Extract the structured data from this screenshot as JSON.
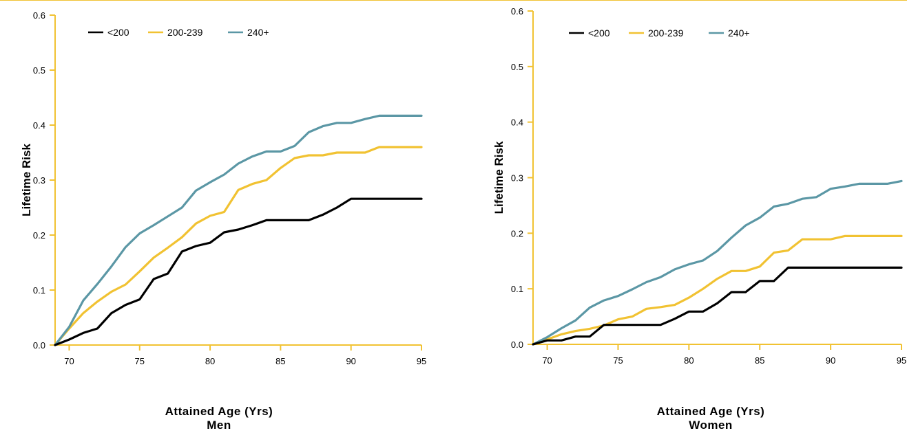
{
  "colors": {
    "axis": "#f1c232",
    "s_lt200": "#000000",
    "s_200_239": "#f1c232",
    "s_240": "#5b97a5"
  },
  "chart_data": [
    {
      "type": "line",
      "panel": "Men",
      "xlabel": "Attained Age (Yrs)",
      "ylabel": "Lifetime Risk",
      "xlim": [
        69,
        95
      ],
      "ylim": [
        0,
        0.6
      ],
      "xticks": [
        70,
        75,
        80,
        85,
        90,
        95
      ],
      "yticks": [
        0.0,
        0.1,
        0.2,
        0.3,
        0.4,
        0.5,
        0.6
      ],
      "ytick_labels": [
        "0.0",
        "0.1",
        "0.2",
        "0.3",
        "0.4",
        "0.5",
        "0.6"
      ],
      "legend": "top-left",
      "series": [
        {
          "name": "<200",
          "color": "#000000",
          "x": [
            69,
            70,
            71,
            72,
            73,
            74,
            75,
            76,
            77,
            78,
            79,
            80,
            81,
            82,
            83,
            84,
            85,
            86,
            87,
            88,
            89,
            90,
            91,
            92,
            93,
            94,
            95
          ],
          "y": [
            0.0,
            0.01,
            0.022,
            0.03,
            0.058,
            0.073,
            0.083,
            0.12,
            0.13,
            0.17,
            0.18,
            0.186,
            0.205,
            0.21,
            0.218,
            0.227,
            0.227,
            0.227,
            0.227,
            0.237,
            0.25,
            0.266,
            0.266,
            0.266,
            0.266,
            0.266,
            0.266
          ]
        },
        {
          "name": "200-239",
          "color": "#f1c232",
          "x": [
            69,
            70,
            71,
            72,
            73,
            74,
            75,
            76,
            77,
            78,
            79,
            80,
            81,
            82,
            83,
            84,
            85,
            86,
            87,
            88,
            89,
            90,
            91,
            92,
            93,
            94,
            95
          ],
          "y": [
            0.0,
            0.03,
            0.058,
            0.079,
            0.097,
            0.11,
            0.134,
            0.159,
            0.177,
            0.196,
            0.221,
            0.235,
            0.242,
            0.282,
            0.293,
            0.3,
            0.322,
            0.34,
            0.345,
            0.345,
            0.35,
            0.35,
            0.35,
            0.36,
            0.36,
            0.36,
            0.36
          ]
        },
        {
          "name": "240+",
          "color": "#5b97a5",
          "x": [
            69,
            70,
            71,
            72,
            73,
            74,
            75,
            76,
            77,
            78,
            79,
            80,
            81,
            82,
            83,
            84,
            85,
            86,
            87,
            88,
            89,
            90,
            91,
            92,
            93,
            94,
            95
          ],
          "y": [
            0.0,
            0.033,
            0.081,
            0.111,
            0.143,
            0.178,
            0.203,
            0.218,
            0.234,
            0.25,
            0.281,
            0.296,
            0.31,
            0.33,
            0.343,
            0.352,
            0.352,
            0.362,
            0.387,
            0.398,
            0.404,
            0.404,
            0.411,
            0.417,
            0.417,
            0.417,
            0.417
          ]
        }
      ]
    },
    {
      "type": "line",
      "panel": "Women",
      "xlabel": "Attained Age (Yrs)",
      "ylabel": "Lifetime Risk",
      "xlim": [
        69,
        95
      ],
      "ylim": [
        0,
        0.6
      ],
      "xticks": [
        70,
        75,
        80,
        85,
        90,
        95
      ],
      "yticks": [
        0.0,
        0.1,
        0.2,
        0.3,
        0.4,
        0.5,
        0.6
      ],
      "ytick_labels": [
        "0.0",
        "0.1",
        "0.2",
        "0.3",
        "0.4",
        "0.5",
        "0.6"
      ],
      "legend": "top-left",
      "series": [
        {
          "name": "<200",
          "color": "#000000",
          "x": [
            69,
            70,
            71,
            72,
            73,
            74,
            75,
            76,
            77,
            78,
            79,
            80,
            81,
            82,
            83,
            84,
            85,
            86,
            87,
            88,
            89,
            90,
            91,
            92,
            93,
            94,
            95
          ],
          "y": [
            0.0,
            0.007,
            0.007,
            0.014,
            0.014,
            0.035,
            0.035,
            0.035,
            0.035,
            0.035,
            0.046,
            0.059,
            0.059,
            0.074,
            0.094,
            0.094,
            0.114,
            0.114,
            0.138,
            0.138,
            0.138,
            0.138,
            0.138,
            0.138,
            0.138,
            0.138,
            0.138
          ]
        },
        {
          "name": "200-239",
          "color": "#f1c232",
          "x": [
            69,
            70,
            71,
            72,
            73,
            74,
            75,
            76,
            77,
            78,
            79,
            80,
            81,
            82,
            83,
            84,
            85,
            86,
            87,
            88,
            89,
            90,
            91,
            92,
            93,
            94,
            95
          ],
          "y": [
            0.0,
            0.009,
            0.018,
            0.024,
            0.028,
            0.034,
            0.045,
            0.05,
            0.064,
            0.067,
            0.071,
            0.084,
            0.1,
            0.118,
            0.132,
            0.132,
            0.14,
            0.165,
            0.169,
            0.189,
            0.189,
            0.189,
            0.195,
            0.195,
            0.195,
            0.195,
            0.195
          ]
        },
        {
          "name": "240+",
          "color": "#5b97a5",
          "x": [
            69,
            70,
            71,
            72,
            73,
            74,
            75,
            76,
            77,
            78,
            79,
            80,
            81,
            82,
            83,
            84,
            85,
            86,
            87,
            88,
            89,
            90,
            91,
            92,
            93,
            94,
            95
          ],
          "y": [
            0.0,
            0.013,
            0.029,
            0.043,
            0.066,
            0.079,
            0.087,
            0.099,
            0.112,
            0.121,
            0.135,
            0.144,
            0.151,
            0.168,
            0.192,
            0.214,
            0.228,
            0.248,
            0.253,
            0.262,
            0.265,
            0.28,
            0.284,
            0.289,
            0.289,
            0.289,
            0.294
          ]
        }
      ]
    }
  ],
  "panels": [
    {
      "subtitle": "Men"
    },
    {
      "subtitle": "Women"
    }
  ]
}
